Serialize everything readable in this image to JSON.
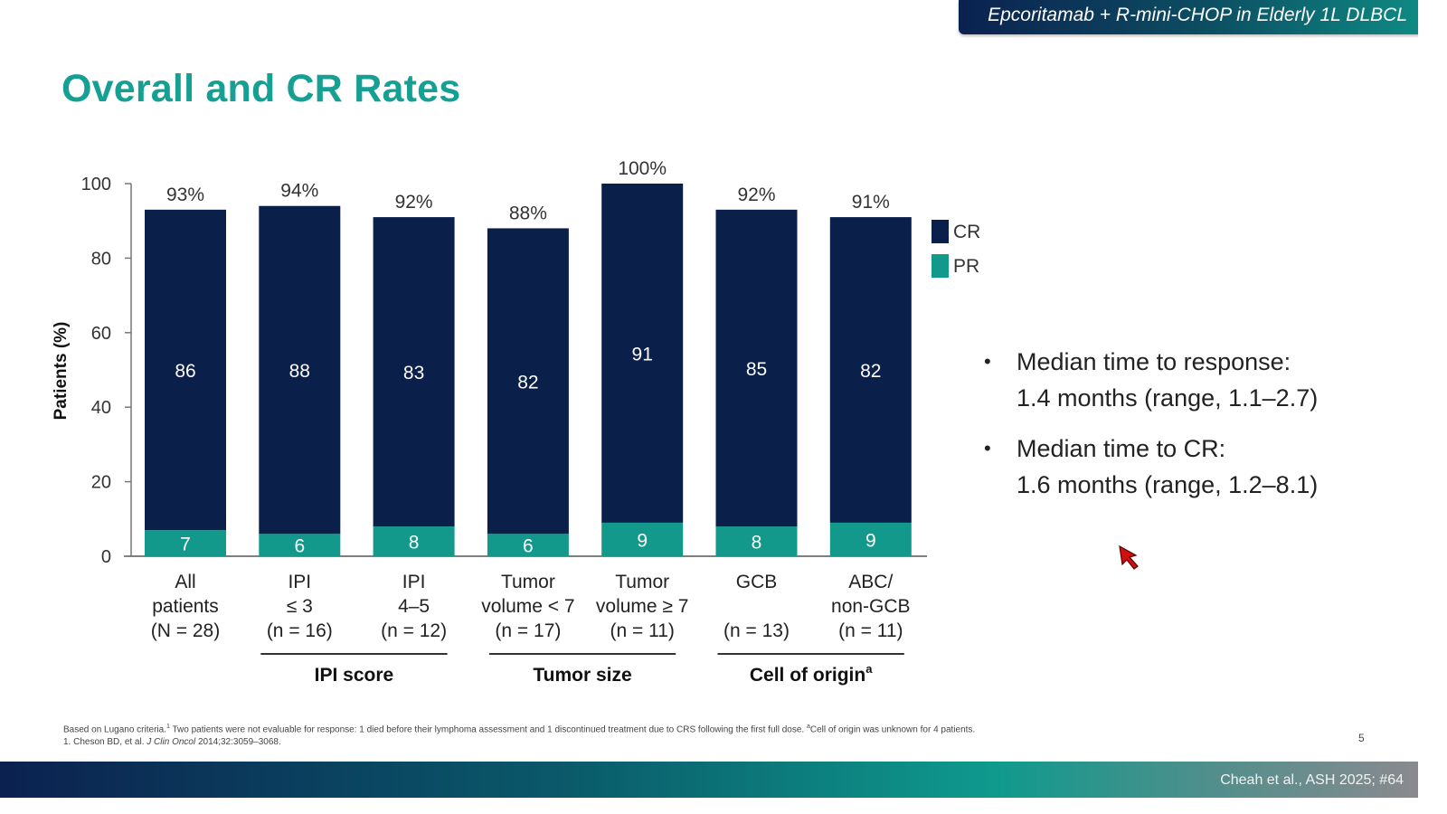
{
  "header": {
    "banner": "Epcoritamab + R-mini-CHOP in Elderly 1L DLBCL",
    "title": "Overall and CR Rates"
  },
  "colors": {
    "cr": "#0b1f4b",
    "pr": "#13998c",
    "title": "#15a093",
    "axis": "#777777"
  },
  "chart_data": {
    "type": "bar",
    "stacked": true,
    "title": "Overall and CR Rates",
    "ylabel": "Patients (%)",
    "xlabel": "",
    "ylim": [
      0,
      100
    ],
    "yticks": [
      0,
      20,
      40,
      60,
      80,
      100
    ],
    "grid": false,
    "legend": {
      "position": "right",
      "entries": [
        "CR",
        "PR"
      ]
    },
    "categories": [
      {
        "lines": [
          "All",
          "patients",
          "(N = 28)"
        ]
      },
      {
        "lines": [
          "IPI",
          "≤ 3",
          "(n = 16)"
        ]
      },
      {
        "lines": [
          "IPI",
          "4–5",
          "(n = 12)"
        ]
      },
      {
        "lines": [
          "Tumor",
          "volume < 7",
          "(n = 17)"
        ]
      },
      {
        "lines": [
          "Tumor",
          "volume ≥ 7",
          "(n =  11)"
        ]
      },
      {
        "lines": [
          "GCB",
          "",
          "(n = 13)"
        ]
      },
      {
        "lines": [
          "ABC/",
          "non-GCB",
          "(n = 11)"
        ]
      }
    ],
    "series": [
      {
        "name": "PR",
        "values": [
          7,
          6,
          8,
          6,
          9,
          8,
          9
        ]
      },
      {
        "name": "CR",
        "values": [
          86,
          88,
          83,
          82,
          91,
          85,
          82
        ]
      }
    ],
    "totals": [
      "93%",
      "94%",
      "92%",
      "88%",
      "100%",
      "92%",
      "91%"
    ],
    "total_values": [
      93,
      94,
      92,
      88,
      100,
      92,
      91
    ],
    "groups": [
      {
        "label": "IPI score",
        "superscript": "",
        "from": 1,
        "to": 2
      },
      {
        "label": "Tumor size",
        "superscript": "",
        "from": 3,
        "to": 4
      },
      {
        "label": "Cell of origin",
        "superscript": "a",
        "from": 5,
        "to": 6
      }
    ]
  },
  "bullets": [
    {
      "lines": [
        "Median time to response:",
        "1.4 months (range, 1.1–2.7)"
      ]
    },
    {
      "lines": [
        "Median time to CR:",
        "1.6 months (range, 1.2–8.1)"
      ]
    }
  ],
  "footnote": {
    "line1_a": "Based on Lugano criteria.",
    "line1_sup": "1",
    "line1_b": " Two patients were not evaluable for response: 1 died before their lymphoma assessment and 1 discontinued treatment due to CRS following the first full dose. ",
    "line1_sup2": "a",
    "line1_c": "Cell of origin was unknown for 4 patients.",
    "line2_a": "1. Cheson BD, et al. ",
    "line2_journal": "J Clin Oncol",
    "line2_b": " 2014;32:3059–3068."
  },
  "page_number": "5",
  "footer": {
    "citation": "Cheah et al., ASH 2025; #64"
  }
}
